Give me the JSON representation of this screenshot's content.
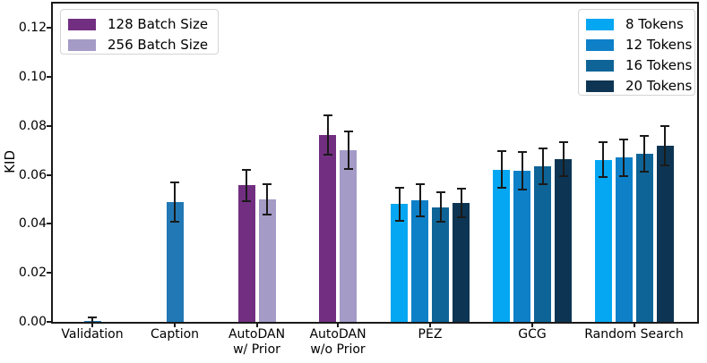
{
  "figure": {
    "background": "#ffffff",
    "axis_color": "#1a1a1a"
  },
  "legends": {
    "batch_size": {
      "position": "upper left",
      "items": [
        {
          "label": "128 Batch Size",
          "color": "#722f81"
        },
        {
          "label": "256 Batch Size",
          "color": "#a49bc7"
        }
      ]
    },
    "tokens": {
      "position": "upper right",
      "items": [
        {
          "label": "8 Tokens",
          "color": "#05a7f2"
        },
        {
          "label": "12 Tokens",
          "color": "#0e80c8"
        },
        {
          "label": "16 Tokens",
          "color": "#0e6496"
        },
        {
          "label": "20 Tokens",
          "color": "#0d3553"
        }
      ]
    }
  },
  "chart_data": {
    "type": "bar",
    "title": "",
    "xlabel": "",
    "ylabel": "KID",
    "ylim": [
      0,
      0.13
    ],
    "yticks": [
      0.0,
      0.02,
      0.04,
      0.06,
      0.08,
      0.1,
      0.12
    ],
    "ytick_labels": [
      "0.00",
      "0.02",
      "0.04",
      "0.06",
      "0.08",
      "0.10",
      "0.12"
    ],
    "grid": false,
    "error_bars": true,
    "series_colors": {
      "Validation": "#2278b5",
      "Caption": "#2278b5",
      "128 Batch Size": "#722f81",
      "256 Batch Size": "#a49bc7",
      "8 Tokens": "#05a7f2",
      "12 Tokens": "#0e80c8",
      "16 Tokens": "#0e6496",
      "20 Tokens": "#0d3553"
    },
    "groups": [
      {
        "category": "Validation",
        "label_lines": [
          "Validation"
        ],
        "bars": [
          {
            "series": "Validation",
            "value": 0.0005,
            "error": 0.0015
          }
        ]
      },
      {
        "category": "Caption",
        "label_lines": [
          "Caption"
        ],
        "bars": [
          {
            "series": "Caption",
            "value": 0.049,
            "error": 0.008
          }
        ]
      },
      {
        "category": "AutoDAN w/ Prior",
        "label_lines": [
          "AutoDAN",
          "w/ Prior"
        ],
        "bars": [
          {
            "series": "128 Batch Size",
            "value": 0.0558,
            "error": 0.0064
          },
          {
            "series": "256 Batch Size",
            "value": 0.05,
            "error": 0.0063
          }
        ]
      },
      {
        "category": "AutoDAN w/o Prior",
        "label_lines": [
          "AutoDAN",
          "w/o Prior"
        ],
        "bars": [
          {
            "series": "128 Batch Size",
            "value": 0.0762,
            "error": 0.008
          },
          {
            "series": "256 Batch Size",
            "value": 0.0702,
            "error": 0.0077
          }
        ]
      },
      {
        "category": "PEZ",
        "label_lines": [
          "PEZ"
        ],
        "bars": [
          {
            "series": "8 Tokens",
            "value": 0.0481,
            "error": 0.0067
          },
          {
            "series": "12 Tokens",
            "value": 0.0497,
            "error": 0.0066
          },
          {
            "series": "16 Tokens",
            "value": 0.0469,
            "error": 0.006
          },
          {
            "series": "20 Tokens",
            "value": 0.0486,
            "error": 0.0059
          }
        ]
      },
      {
        "category": "GCG",
        "label_lines": [
          "GCG"
        ],
        "bars": [
          {
            "series": "8 Tokens",
            "value": 0.0622,
            "error": 0.0076
          },
          {
            "series": "12 Tokens",
            "value": 0.0617,
            "error": 0.0078
          },
          {
            "series": "16 Tokens",
            "value": 0.0636,
            "error": 0.0073
          },
          {
            "series": "20 Tokens",
            "value": 0.0665,
            "error": 0.0068
          }
        ]
      },
      {
        "category": "Random Search",
        "label_lines": [
          "Random Search"
        ],
        "bars": [
          {
            "series": "8 Tokens",
            "value": 0.0662,
            "error": 0.0071
          },
          {
            "series": "12 Tokens",
            "value": 0.0671,
            "error": 0.0074
          },
          {
            "series": "16 Tokens",
            "value": 0.0688,
            "error": 0.0073
          },
          {
            "series": "20 Tokens",
            "value": 0.0719,
            "error": 0.0079
          }
        ]
      }
    ]
  }
}
